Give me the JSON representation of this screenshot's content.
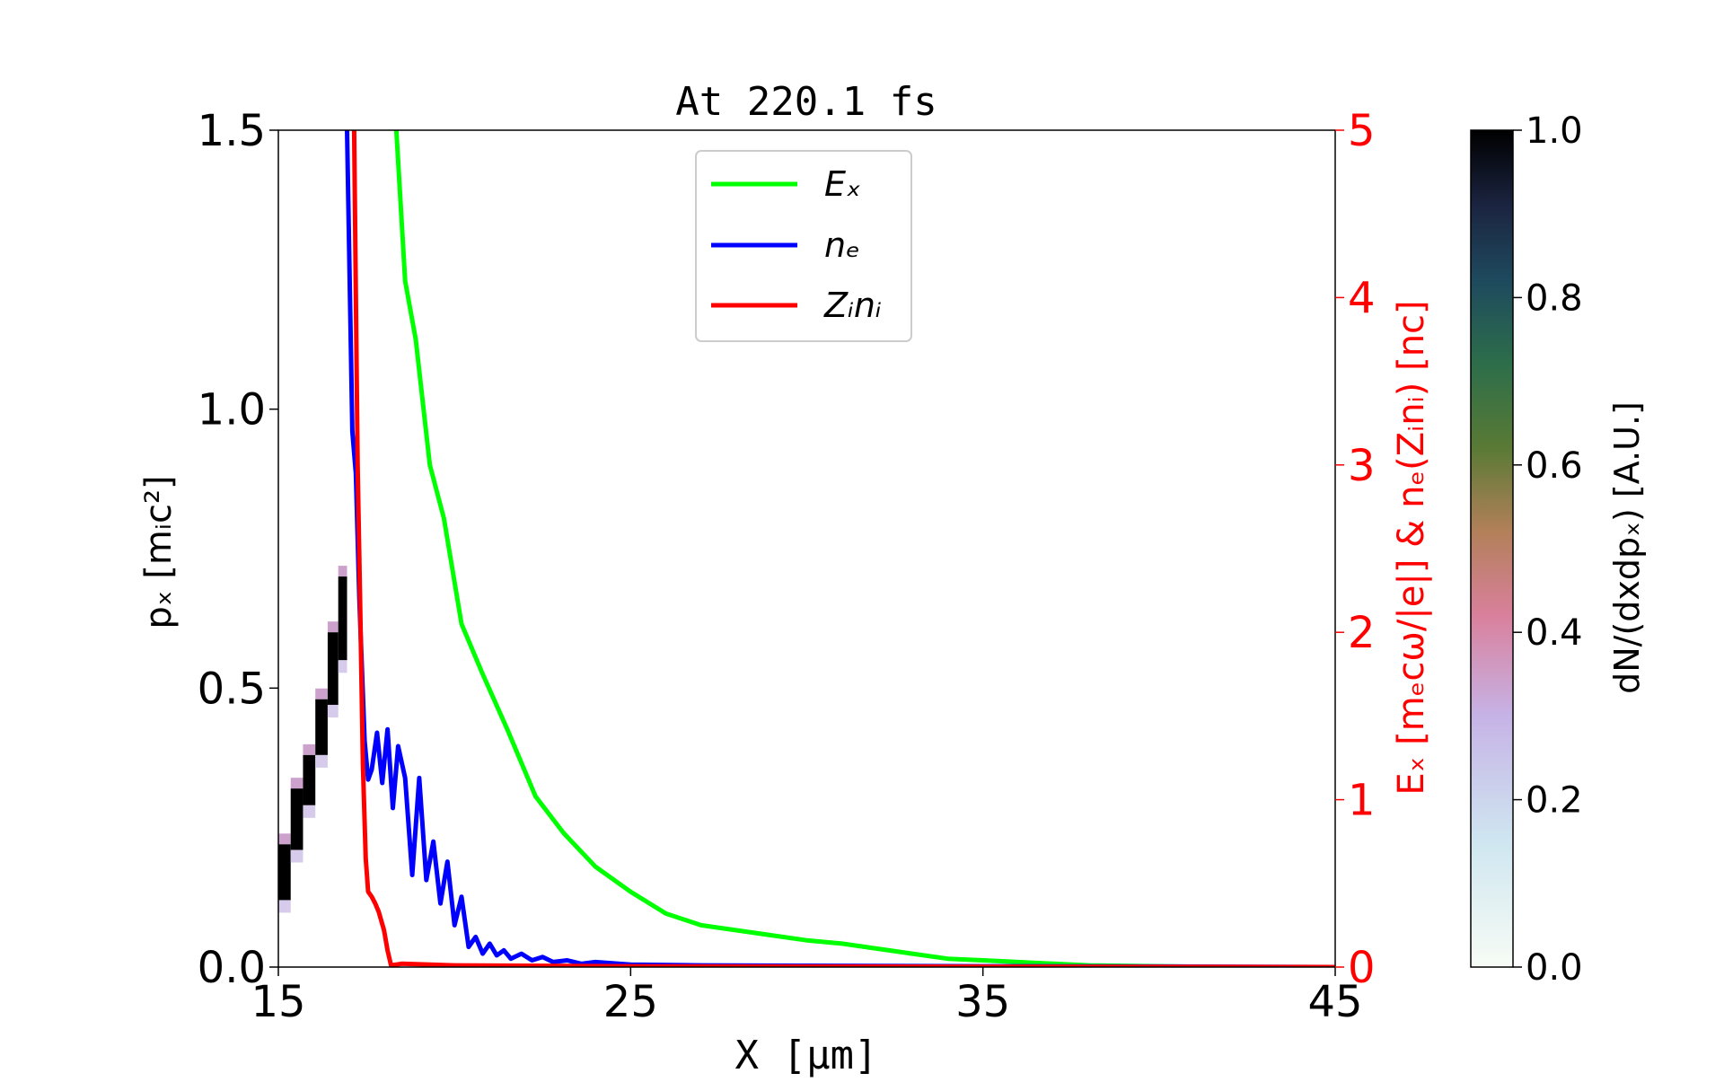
{
  "chart_data": {
    "type": "line",
    "title": "At 220.1 fs",
    "xlabel": "X [μm]",
    "ylabel_left": "pₓ [mᵢc²]",
    "ylabel_right": "Eₓ [mₑcω/|e|] & nₑ(Zᵢnᵢ) [nᴄ]",
    "colorbar_label": "dN/(dxdpₓ) [A.U.]",
    "xlim": [
      15,
      45
    ],
    "ylim_left": [
      0,
      1.5
    ],
    "ylim_right": [
      0,
      5
    ],
    "colorbar_lim": [
      0,
      1
    ],
    "x_ticks": [
      "15",
      "25",
      "35",
      "45"
    ],
    "x_tick_values": [
      15,
      25,
      35,
      45
    ],
    "y_left_ticks": [
      "0.0",
      "0.5",
      "1.0",
      "1.5"
    ],
    "y_left_tick_values": [
      0,
      0.5,
      1.0,
      1.5
    ],
    "y_right_ticks": [
      "0",
      "1",
      "2",
      "3",
      "4",
      "5"
    ],
    "y_right_tick_values": [
      0,
      1,
      2,
      3,
      4,
      5
    ],
    "colorbar_ticks": [
      "0.0",
      "0.2",
      "0.4",
      "0.6",
      "0.8",
      "1.0"
    ],
    "colorbar_tick_values": [
      0,
      0.2,
      0.4,
      0.6,
      0.8,
      1.0
    ],
    "legend_position": "top-center",
    "series": [
      {
        "name": "Eₓ",
        "axis": "right",
        "color": "#00ff00",
        "x": [
          18.35,
          18.6,
          18.9,
          19.3,
          19.7,
          20.2,
          20.8,
          21.5,
          22.3,
          23.1,
          24.0,
          25.0,
          26.0,
          27.0,
          28.0,
          29.0,
          30.0,
          31.0,
          32.0,
          33.0,
          34.0,
          35.0,
          36.0,
          37.0,
          38.0,
          40.0,
          42.0,
          45.0
        ],
        "y": [
          5.0,
          4.1,
          3.75,
          3.0,
          2.68,
          2.05,
          1.75,
          1.42,
          1.02,
          0.8,
          0.6,
          0.45,
          0.32,
          0.25,
          0.22,
          0.19,
          0.16,
          0.14,
          0.11,
          0.08,
          0.05,
          0.04,
          0.03,
          0.02,
          0.01,
          0.005,
          0.0,
          0.0
        ]
      },
      {
        "name": "nₑ",
        "axis": "right",
        "color": "#0000ff",
        "x": [
          16.95,
          17.1,
          17.2,
          17.3,
          17.45,
          17.55,
          17.65,
          17.8,
          17.95,
          18.1,
          18.25,
          18.4,
          18.6,
          18.8,
          19.0,
          19.2,
          19.4,
          19.6,
          19.8,
          20.0,
          20.2,
          20.4,
          20.6,
          20.8,
          21.0,
          21.2,
          21.4,
          21.6,
          21.9,
          22.2,
          22.5,
          22.8,
          23.2,
          23.6,
          24.0,
          25.0,
          27.0,
          30.0,
          35.0,
          40.0,
          45.0
        ],
        "y": [
          5.0,
          3.2,
          2.95,
          2.2,
          1.35,
          1.12,
          1.18,
          1.4,
          1.1,
          1.42,
          0.95,
          1.32,
          1.13,
          0.55,
          1.13,
          0.52,
          0.75,
          0.38,
          0.63,
          0.25,
          0.42,
          0.12,
          0.18,
          0.08,
          0.14,
          0.07,
          0.1,
          0.05,
          0.08,
          0.04,
          0.06,
          0.03,
          0.04,
          0.02,
          0.03,
          0.015,
          0.01,
          0.008,
          0.005,
          0.003,
          0.0
        ]
      },
      {
        "name": "Zᵢnᵢ",
        "axis": "right",
        "color": "#ff0000",
        "x": [
          17.15,
          17.25,
          17.32,
          17.4,
          17.48,
          17.55,
          17.65,
          17.75,
          17.85,
          18.0,
          18.1,
          18.2,
          18.5,
          20.0,
          25.0,
          30.0,
          35.0,
          40.0,
          45.0
        ],
        "y": [
          5.0,
          3.0,
          2.2,
          1.2,
          0.65,
          0.45,
          0.42,
          0.38,
          0.33,
          0.22,
          0.1,
          0.01,
          0.02,
          0.01,
          0.005,
          0.003,
          0.002,
          0.001,
          0.0
        ]
      }
    ],
    "phase_space_columns": [
      {
        "x0": 15.0,
        "x1": 15.35,
        "p": [
          0.12,
          0.22
        ],
        "v": [
          0.8,
          1.0
        ]
      },
      {
        "x0": 15.35,
        "x1": 15.7,
        "p": [
          0.21,
          0.32
        ],
        "v": [
          0.85,
          1.0
        ]
      },
      {
        "x0": 15.7,
        "x1": 16.05,
        "p": [
          0.29,
          0.38
        ],
        "v": [
          0.85,
          1.0
        ]
      },
      {
        "x0": 16.05,
        "x1": 16.4,
        "p": [
          0.38,
          0.48
        ],
        "v": [
          0.85,
          1.0
        ]
      },
      {
        "x0": 16.4,
        "x1": 16.7,
        "p": [
          0.47,
          0.6
        ],
        "v": [
          0.8,
          1.0
        ]
      },
      {
        "x0": 16.7,
        "x1": 16.95,
        "p": [
          0.55,
          0.7
        ],
        "v": [
          0.75,
          1.0
        ]
      }
    ]
  }
}
